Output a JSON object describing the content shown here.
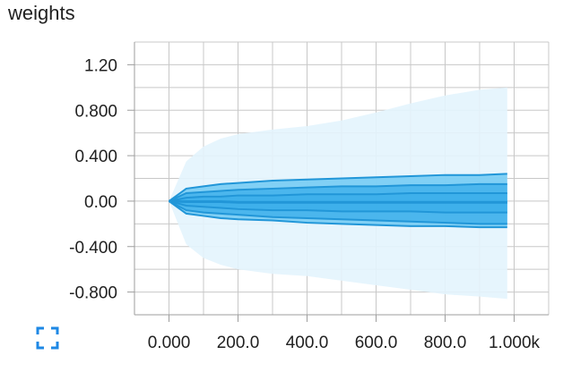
{
  "card": {
    "title": "weights",
    "expand_icon": "fullscreen-icon"
  },
  "colors": {
    "band_outer": "#e3f4fd",
    "band_mid": "#6ec9f3",
    "band_inner": "#3aaeea",
    "line": "#2196d8",
    "grid": "#c8c8c8",
    "axis": "#9e9e9e",
    "accent": "#1e88e5"
  },
  "chart_data": {
    "type": "area",
    "title": "weights",
    "xlabel": "",
    "ylabel": "",
    "xlim": [
      -100,
      1100
    ],
    "ylim": [
      -1.0,
      1.4
    ],
    "grid": true,
    "x_ticks": [
      0,
      200,
      400,
      600,
      800,
      1000
    ],
    "x_tick_labels": [
      "0.000",
      "200.0",
      "400.0",
      "600.0",
      "800.0",
      "1.000k"
    ],
    "y_ticks": [
      1.2,
      0.8,
      0.4,
      0.0,
      -0.4,
      -0.8
    ],
    "y_tick_labels": [
      "1.20",
      "0.800",
      "0.400",
      "0.00",
      "-0.400",
      "-0.800"
    ],
    "x": [
      0,
      50,
      100,
      150,
      200,
      300,
      400,
      500,
      600,
      700,
      800,
      900,
      980
    ],
    "series": [
      {
        "values": [
          0.0,
          0.35,
          0.48,
          0.55,
          0.59,
          0.63,
          0.66,
          0.71,
          0.78,
          0.86,
          0.93,
          0.98,
          1.0
        ]
      },
      {
        "values": [
          0.0,
          0.11,
          0.13,
          0.15,
          0.16,
          0.18,
          0.19,
          0.2,
          0.21,
          0.22,
          0.23,
          0.23,
          0.24
        ]
      },
      {
        "values": [
          0.0,
          0.07,
          0.08,
          0.09,
          0.1,
          0.11,
          0.12,
          0.13,
          0.13,
          0.14,
          0.14,
          0.15,
          0.15
        ]
      },
      {
        "values": [
          0.0,
          0.03,
          0.04,
          0.04,
          0.05,
          0.05,
          0.06,
          0.06,
          0.06,
          0.07,
          0.07,
          0.07,
          0.07
        ]
      },
      {
        "values": [
          0.0,
          -0.005,
          -0.005,
          -0.005,
          -0.01,
          -0.01,
          -0.01,
          -0.01,
          -0.01,
          -0.01,
          -0.01,
          -0.01,
          -0.01
        ]
      },
      {
        "values": [
          0.0,
          -0.04,
          -0.05,
          -0.06,
          -0.07,
          -0.08,
          -0.08,
          -0.09,
          -0.09,
          -0.09,
          -0.1,
          -0.1,
          -0.1
        ]
      },
      {
        "values": [
          0.0,
          -0.08,
          -0.1,
          -0.11,
          -0.12,
          -0.14,
          -0.15,
          -0.16,
          -0.17,
          -0.18,
          -0.19,
          -0.2,
          -0.2
        ]
      },
      {
        "values": [
          0.0,
          -0.11,
          -0.13,
          -0.15,
          -0.16,
          -0.17,
          -0.19,
          -0.2,
          -0.21,
          -0.22,
          -0.22,
          -0.23,
          -0.23
        ]
      },
      {
        "values": [
          0.0,
          -0.38,
          -0.5,
          -0.56,
          -0.6,
          -0.64,
          -0.66,
          -0.7,
          -0.74,
          -0.78,
          -0.82,
          -0.84,
          -0.86
        ]
      }
    ]
  }
}
